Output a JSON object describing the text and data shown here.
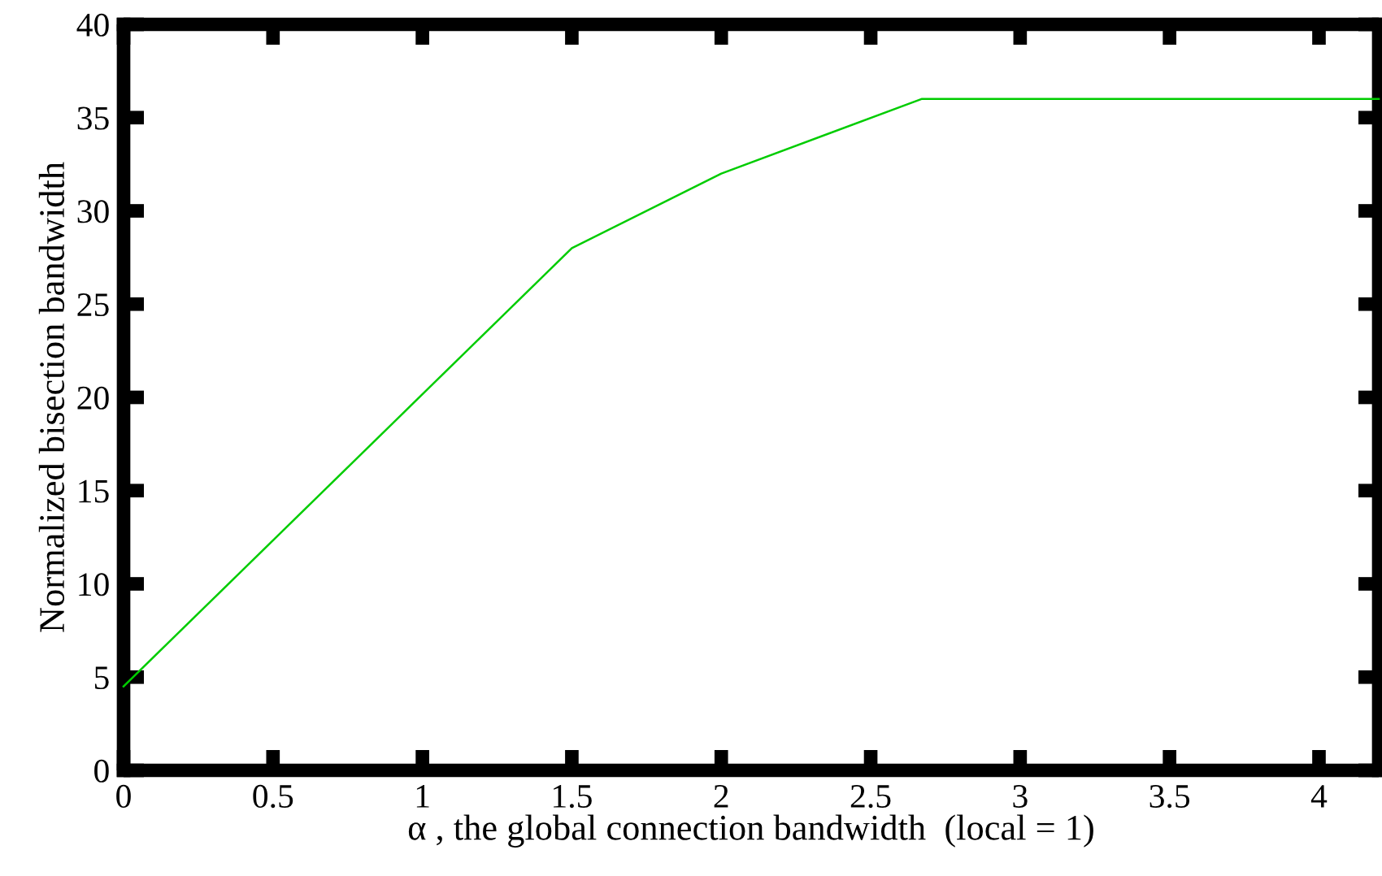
{
  "chart_data": {
    "type": "line",
    "xlabel": "α , the global connection bandwidth  (local = 1)",
    "ylabel": "Normalized bisection bandwidth",
    "x": [
      0,
      1.5,
      2,
      2.67,
      4.2
    ],
    "series": [
      {
        "color": "#00cc00",
        "values": [
          4.5,
          28,
          32,
          36,
          36
        ]
      }
    ],
    "xlim": [
      0,
      4.2
    ],
    "ylim": [
      0,
      40
    ],
    "xticks": [
      0,
      0.5,
      1,
      1.5,
      2,
      2.5,
      3,
      3.5,
      4
    ],
    "yticks": [
      0,
      5,
      10,
      15,
      20,
      25,
      30,
      35,
      40
    ],
    "grid": false,
    "legend": false,
    "marker": "none",
    "line_style": "solid"
  }
}
